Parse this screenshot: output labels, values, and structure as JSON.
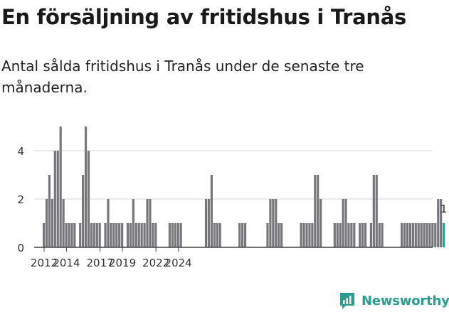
{
  "title": "En försäljning av fritidshus i Tranås",
  "subtitle": "Antal sålda fritidshus i Tranås under de senaste tre månaderna.",
  "brand": {
    "name": "Newsworthy",
    "icon": "newsworthy-logo-icon",
    "color": "#2a9d8f"
  },
  "chart_data": {
    "type": "bar",
    "unit": "quarter",
    "x_start": "2012-01",
    "y_ticks": [
      "0",
      "2",
      "4"
    ],
    "ylim": [
      0,
      5
    ],
    "x_ticks": [
      {
        "label": "2012",
        "year": 2012
      },
      {
        "label": "2014",
        "year": 2014
      },
      {
        "label": "2017",
        "year": 2017
      },
      {
        "label": "2019",
        "year": 2019
      },
      {
        "label": "2022",
        "year": 2022
      },
      {
        "label": "2024",
        "year": 2024
      }
    ],
    "grid": true,
    "bar_color": "#77767b",
    "highlight_color": "#2a9d8f",
    "highlight_label": "1",
    "values": [
      1,
      2,
      3,
      2,
      4,
      4,
      5,
      2,
      1,
      1,
      1,
      1,
      0,
      1,
      3,
      5,
      4,
      1,
      1,
      1,
      1,
      0,
      1,
      2,
      1,
      1,
      1,
      1,
      1,
      0,
      1,
      1,
      2,
      1,
      1,
      1,
      1,
      2,
      2,
      1,
      1,
      0,
      0,
      0,
      0,
      1,
      1,
      1,
      1,
      1,
      0,
      0,
      0,
      0,
      0,
      0,
      0,
      0,
      2,
      2,
      3,
      1,
      1,
      1,
      0,
      0,
      0,
      0,
      0,
      0,
      1,
      1,
      1,
      0,
      0,
      0,
      0,
      0,
      0,
      0,
      1,
      2,
      2,
      2,
      1,
      1,
      0,
      0,
      0,
      0,
      0,
      0,
      1,
      1,
      1,
      1,
      1,
      3,
      3,
      2,
      0,
      0,
      0,
      0,
      1,
      1,
      1,
      2,
      2,
      1,
      1,
      1,
      0,
      1,
      1,
      1,
      0,
      1,
      3,
      3,
      1,
      1,
      0,
      0,
      0,
      0,
      0,
      0,
      1,
      1,
      1,
      1,
      1,
      1,
      1,
      1,
      1,
      1,
      1,
      1,
      1,
      2,
      2,
      1
    ]
  }
}
